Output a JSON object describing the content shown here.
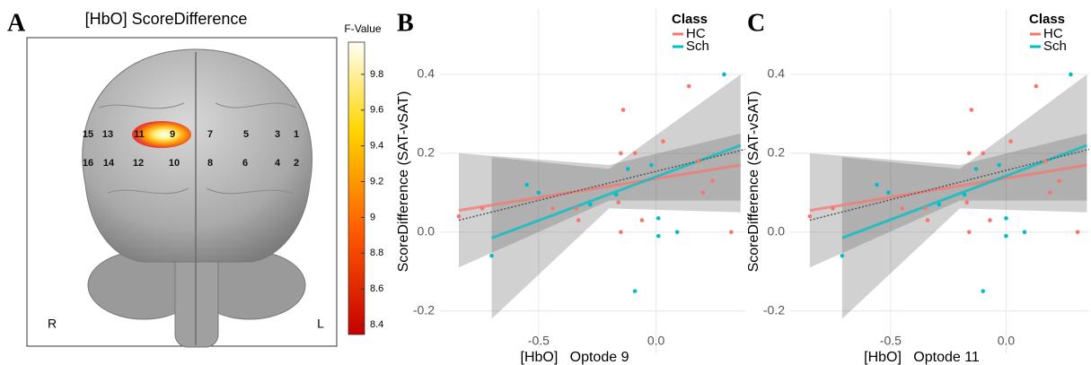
{
  "chart_data": [
    {
      "type": "brain-map",
      "panel": "A",
      "title": "[HbO] ScoreDifference",
      "colorbar_label": "F-Value",
      "clim": [
        8.345,
        9.98
      ],
      "cticks": [
        8.4,
        8.6,
        8.8,
        9,
        9.2,
        9.4,
        9.6,
        9.8
      ],
      "optode_labels": [
        "15",
        "13",
        "11",
        "9",
        "7",
        "5",
        "3",
        "1",
        "16",
        "14",
        "12",
        "10",
        "8",
        "6",
        "4",
        "2"
      ],
      "side_labels": [
        "R",
        "L"
      ]
    },
    {
      "type": "scatter",
      "panel": "B",
      "x_label": "[HbO]   Optode 9",
      "y_label": "ScoreDifference (SAT-vSAT)",
      "legend_title": "Class",
      "xlim": [
        -0.92,
        0.38
      ],
      "ylim": [
        -0.31,
        0.566
      ],
      "xticks": [
        -0.5,
        {
          "value": 0,
          "label": "0.0"
        }
      ],
      "yticks": [
        -0.2,
        {
          "value": 0,
          "label": "0.0"
        },
        0.2,
        0.4
      ],
      "series": [
        {
          "name": "HC",
          "color": "#f8766d",
          "x": [
            -0.84,
            -0.74,
            -0.44,
            -0.34,
            -0.33,
            -0.16,
            -0.15,
            -0.14,
            -0.15,
            -0.09,
            -0.06,
            0.03,
            0.14,
            0.18,
            0.2,
            0.24,
            0.32
          ],
          "values": [
            0.04,
            0.06,
            0.06,
            0.06,
            0.03,
            0.075,
            0.2,
            0.31,
            0.0,
            0.2,
            0.03,
            0.23,
            0.37,
            0.18,
            0.1,
            0.13,
            0.0
          ],
          "fit_x": [
            -0.84,
            0.36
          ],
          "fit_y": [
            0.055,
            0.17
          ],
          "band_x": [
            -0.84,
            -0.2,
            0.36
          ],
          "band_lower": [
            -0.09,
            0.08,
            0.08
          ],
          "band_upper": [
            0.2,
            0.17,
            0.25
          ]
        },
        {
          "name": "Sch",
          "color": "#00bfc4",
          "x": [
            -0.7,
            -0.55,
            -0.5,
            -0.28,
            -0.17,
            -0.12,
            -0.09,
            0.01,
            0.01,
            0.09,
            -0.02,
            0.29
          ],
          "values": [
            -0.06,
            0.12,
            0.1,
            0.07,
            0.095,
            0.16,
            -0.15,
            0.035,
            -0.01,
            0.0,
            0.17,
            0.4
          ],
          "fit_x": [
            -0.7,
            0.36
          ],
          "fit_y": [
            -0.015,
            0.22
          ],
          "band_x": [
            -0.7,
            -0.2,
            0.36
          ],
          "band_lower": [
            -0.22,
            0.06,
            0.05
          ],
          "band_upper": [
            0.19,
            0.16,
            0.4
          ]
        }
      ],
      "overall_fit": {
        "x": [
          -0.84,
          0.38
        ],
        "y": [
          0.03,
          0.21
        ]
      }
    },
    {
      "type": "scatter",
      "panel": "C",
      "x_label": "[HbO]   Optode 11",
      "y_label": "ScoreDifference (SAT-vSAT)",
      "legend_title": "Class",
      "xlim": [
        -0.935,
        0.36
      ],
      "ylim": [
        -0.31,
        0.566
      ],
      "xticks": [
        -0.5,
        {
          "value": 0,
          "label": "0.0"
        }
      ],
      "yticks": [
        -0.2,
        {
          "value": 0,
          "label": "0.0"
        },
        0.2,
        0.4
      ],
      "series": [
        {
          "name": "HC",
          "color": "#f8766d",
          "x": [
            -0.85,
            -0.75,
            -0.45,
            -0.35,
            -0.34,
            -0.17,
            -0.16,
            -0.15,
            -0.16,
            -0.1,
            -0.07,
            0.02,
            0.13,
            0.17,
            0.19,
            0.23,
            0.31
          ],
          "values": [
            0.04,
            0.06,
            0.06,
            0.06,
            0.03,
            0.075,
            0.2,
            0.31,
            0.0,
            0.2,
            0.03,
            0.23,
            0.37,
            0.18,
            0.1,
            0.13,
            0.0
          ],
          "fit_x": [
            -0.85,
            0.35
          ],
          "fit_y": [
            0.055,
            0.17
          ],
          "band_x": [
            -0.85,
            -0.2,
            0.35
          ],
          "band_lower": [
            -0.09,
            0.08,
            0.08
          ],
          "band_upper": [
            0.2,
            0.17,
            0.25
          ]
        },
        {
          "name": "Sch",
          "color": "#00bfc4",
          "x": [
            -0.71,
            -0.56,
            -0.51,
            -0.29,
            -0.18,
            -0.13,
            -0.1,
            0.0,
            0.0,
            0.08,
            -0.03,
            0.28
          ],
          "values": [
            -0.06,
            0.12,
            0.1,
            0.07,
            0.095,
            0.16,
            -0.15,
            0.035,
            -0.01,
            0.0,
            0.17,
            0.4
          ],
          "fit_x": [
            -0.71,
            0.35
          ],
          "fit_y": [
            -0.015,
            0.22
          ],
          "band_x": [
            -0.71,
            -0.2,
            0.35
          ],
          "band_lower": [
            -0.22,
            0.06,
            0.05
          ],
          "band_upper": [
            0.19,
            0.16,
            0.4
          ]
        }
      ],
      "overall_fit": {
        "x": [
          -0.85,
          0.36
        ],
        "y": [
          0.03,
          0.21
        ]
      }
    }
  ]
}
